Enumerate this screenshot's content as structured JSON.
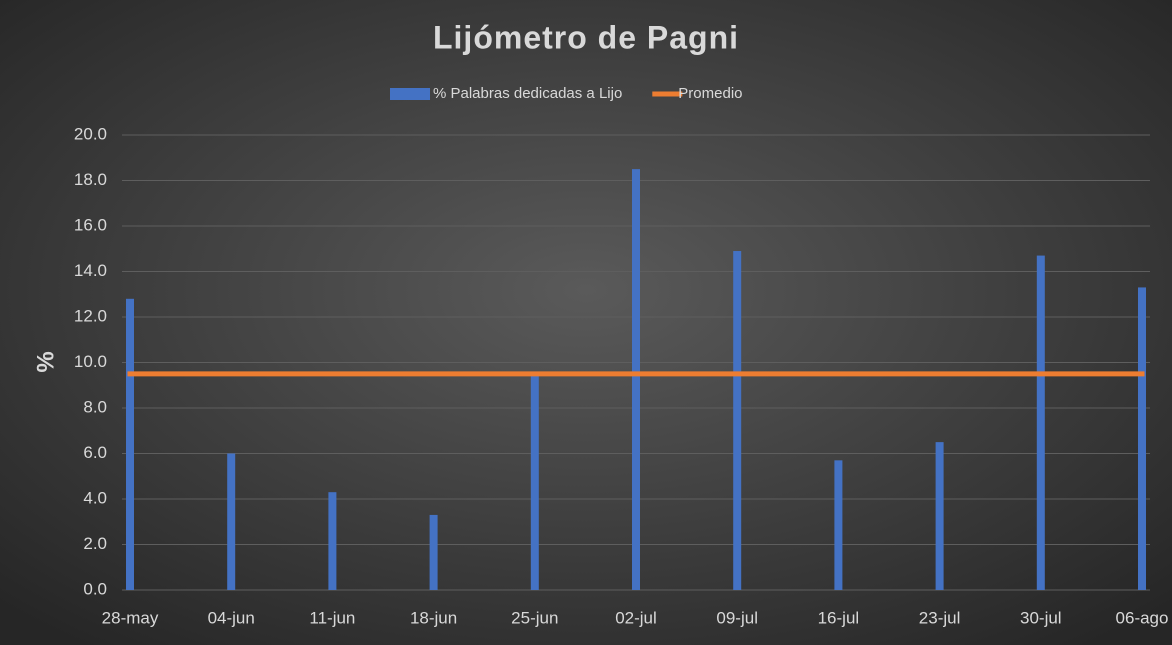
{
  "chart_data": {
    "type": "bar",
    "title": "Lijómetro de Pagni",
    "y_label": "%",
    "categories": [
      "28-may",
      "04-jun",
      "11-jun",
      "18-jun",
      "25-jun",
      "02-jul",
      "09-jul",
      "16-jul",
      "23-jul",
      "30-jul",
      "06-ago"
    ],
    "series": [
      {
        "name": "% Palabras dedicadas a Lijo",
        "type": "bar",
        "color": "#4472c4",
        "values": [
          12.8,
          6.0,
          4.3,
          3.3,
          9.5,
          18.5,
          14.9,
          5.7,
          6.5,
          14.7,
          13.3
        ]
      },
      {
        "name": "Promedio",
        "type": "line",
        "color": "#ed7d31",
        "values": [
          9.5,
          9.5,
          9.5,
          9.5,
          9.5,
          9.5,
          9.5,
          9.5,
          9.5,
          9.5,
          9.5
        ]
      }
    ],
    "ylim": [
      0,
      20
    ],
    "yticks": [
      {
        "value": 0,
        "label": "0.0"
      },
      {
        "value": 2,
        "label": "2.0"
      },
      {
        "value": 4,
        "label": "4.0"
      },
      {
        "value": 6,
        "label": "6.0"
      },
      {
        "value": 8,
        "label": "8.0"
      },
      {
        "value": 10,
        "label": "10.0"
      },
      {
        "value": 12,
        "label": "12.0"
      },
      {
        "value": 14,
        "label": "14.0"
      },
      {
        "value": 16,
        "label": "16.0"
      },
      {
        "value": 18,
        "label": "18.0"
      },
      {
        "value": 20,
        "label": "20.0"
      }
    ],
    "grid": true,
    "legend": "top"
  }
}
